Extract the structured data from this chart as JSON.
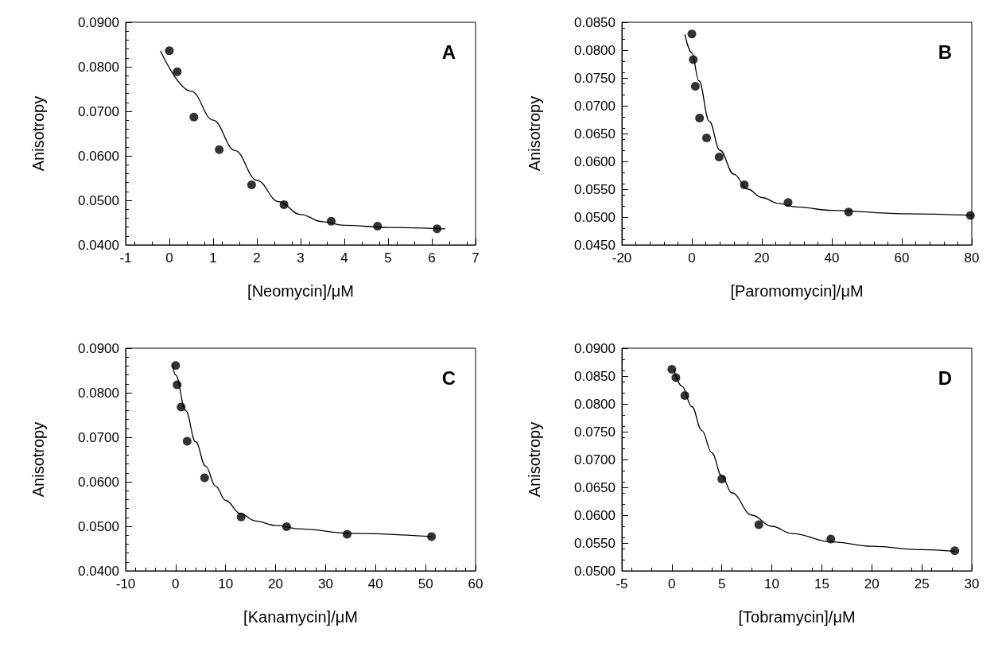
{
  "chart_data": [
    {
      "type": "scatter",
      "xlabel": "[Neomycin]/μM",
      "ylabel": "Anisotropy",
      "annotations": [
        "A"
      ],
      "marker": "circle",
      "grid": false,
      "xlim": [
        -1,
        7
      ],
      "xticks": [
        -1,
        0,
        1,
        2,
        3,
        4,
        5,
        6,
        7
      ],
      "ylim": [
        0.04,
        0.09
      ],
      "yticks": [
        {
          "value": 0.04,
          "label": "0.0400"
        },
        {
          "value": 0.05,
          "label": "0.0500"
        },
        {
          "value": 0.06,
          "label": "0.0600"
        },
        {
          "value": 0.07,
          "label": "0.0700"
        },
        {
          "value": 0.08,
          "label": "0.0800"
        },
        {
          "value": 0.09,
          "label": "0.0900"
        }
      ],
      "series": [
        {
          "color": "#000000",
          "x": [
            0,
            0.18,
            0.56,
            1.14,
            1.88,
            2.62,
            3.7,
            4.76,
            6.12
          ],
          "values": [
            0.0836,
            0.0789,
            0.0687,
            0.0614,
            0.0535,
            0.049,
            0.0453,
            0.0442,
            0.0436
          ]
        },
        {
          "type": "line",
          "color": "#000000",
          "marker": "none",
          "line_style": "solid",
          "x": [
            -0.2,
            0.5,
            1,
            1.5,
            2,
            2.5,
            3,
            3.5,
            4,
            5,
            6.3
          ],
          "values": [
            0.0835,
            0.0745,
            0.068,
            0.0612,
            0.0545,
            0.0497,
            0.0468,
            0.0452,
            0.0444,
            0.0439,
            0.0436
          ]
        }
      ]
    },
    {
      "type": "scatter",
      "xlabel": "[Paromomycin]/μM",
      "ylabel": "Anisotropy",
      "annotations": [
        "B"
      ],
      "marker": "circle",
      "grid": false,
      "xlim": [
        -20,
        80
      ],
      "xticks": [
        -20,
        0,
        20,
        40,
        60,
        80
      ],
      "ylim": [
        0.045,
        0.085
      ],
      "yticks": [
        {
          "value": 0.045,
          "label": "0.0450"
        },
        {
          "value": 0.05,
          "label": "0.0500"
        },
        {
          "value": 0.055,
          "label": "0.0550"
        },
        {
          "value": 0.06,
          "label": "0.0600"
        },
        {
          "value": 0.065,
          "label": "0.0650"
        },
        {
          "value": 0.07,
          "label": "0.0700"
        },
        {
          "value": 0.075,
          "label": "0.0750"
        },
        {
          "value": 0.08,
          "label": "0.0800"
        },
        {
          "value": 0.085,
          "label": "0.0850"
        }
      ],
      "series": [
        {
          "color": "#000000",
          "x": [
            0,
            0.4,
            1,
            2.2,
            4.2,
            7.8,
            15,
            27.5,
            44.8,
            79.6
          ],
          "values": [
            0.0829,
            0.0783,
            0.0735,
            0.0678,
            0.0642,
            0.0608,
            0.0558,
            0.0526,
            0.0509,
            0.0503
          ]
        },
        {
          "type": "line",
          "color": "#000000",
          "marker": "none",
          "line_style": "solid",
          "x": [
            -2,
            0,
            2,
            5,
            8,
            12,
            16,
            20,
            25,
            30,
            40,
            60,
            80
          ],
          "values": [
            0.0828,
            0.0795,
            0.0745,
            0.0672,
            0.062,
            0.0577,
            0.055,
            0.0535,
            0.0524,
            0.0518,
            0.0512,
            0.0506,
            0.0503
          ]
        }
      ]
    },
    {
      "type": "scatter",
      "xlabel": "[Kanamycin]/μM",
      "ylabel": "Anisotropy",
      "annotations": [
        "C"
      ],
      "marker": "circle",
      "grid": false,
      "xlim": [
        -10,
        60
      ],
      "xticks": [
        -10,
        0,
        10,
        20,
        30,
        40,
        50,
        60
      ],
      "ylim": [
        0.04,
        0.09
      ],
      "yticks": [
        {
          "value": 0.04,
          "label": "0.0400"
        },
        {
          "value": 0.05,
          "label": "0.0500"
        },
        {
          "value": 0.06,
          "label": "0.0600"
        },
        {
          "value": 0.07,
          "label": "0.0700"
        },
        {
          "value": 0.08,
          "label": "0.0800"
        },
        {
          "value": 0.09,
          "label": "0.0900"
        }
      ],
      "series": [
        {
          "color": "#000000",
          "x": [
            0,
            0.3,
            1.1,
            2.3,
            5.8,
            13.1,
            22.2,
            34.3,
            51.2
          ],
          "values": [
            0.0861,
            0.0818,
            0.0768,
            0.0691,
            0.0609,
            0.0521,
            0.0499,
            0.0482,
            0.0477
          ]
        },
        {
          "type": "line",
          "color": "#000000",
          "marker": "none",
          "line_style": "solid",
          "x": [
            -0.6,
            0,
            2,
            4,
            6,
            8,
            10,
            13,
            16,
            20,
            25,
            35,
            51
          ],
          "values": [
            0.0862,
            0.084,
            0.076,
            0.069,
            0.0635,
            0.059,
            0.0558,
            0.0528,
            0.0512,
            0.0502,
            0.0494,
            0.0484,
            0.0477
          ]
        }
      ]
    },
    {
      "type": "scatter",
      "xlabel": "[Tobramycin]/μM",
      "ylabel": "Anisotropy",
      "annotations": [
        "D"
      ],
      "marker": "circle",
      "grid": false,
      "xlim": [
        -5,
        30
      ],
      "xticks": [
        -5,
        0,
        5,
        10,
        15,
        20,
        25,
        30
      ],
      "ylim": [
        0.05,
        0.09
      ],
      "yticks": [
        {
          "value": 0.05,
          "label": "0.0500"
        },
        {
          "value": 0.055,
          "label": "0.0550"
        },
        {
          "value": 0.06,
          "label": "0.0600"
        },
        {
          "value": 0.065,
          "label": "0.0650"
        },
        {
          "value": 0.07,
          "label": "0.0700"
        },
        {
          "value": 0.075,
          "label": "0.0750"
        },
        {
          "value": 0.08,
          "label": "0.0800"
        },
        {
          "value": 0.085,
          "label": "0.0850"
        },
        {
          "value": 0.09,
          "label": "0.0900"
        }
      ],
      "series": [
        {
          "color": "#000000",
          "x": [
            0,
            0.4,
            1.3,
            5,
            8.7,
            15.9,
            28.3
          ],
          "values": [
            0.0862,
            0.0847,
            0.0815,
            0.0665,
            0.0583,
            0.0557,
            0.0536
          ]
        },
        {
          "type": "line",
          "color": "#000000",
          "marker": "none",
          "line_style": "solid",
          "x": [
            0.2,
            1,
            2,
            3,
            4,
            5,
            6,
            8,
            10,
            12,
            16,
            20,
            25,
            28.3
          ],
          "values": [
            0.0862,
            0.0832,
            0.0795,
            0.0752,
            0.0712,
            0.067,
            0.064,
            0.06,
            0.058,
            0.0567,
            0.0552,
            0.0544,
            0.0538,
            0.0535
          ]
        }
      ]
    }
  ]
}
